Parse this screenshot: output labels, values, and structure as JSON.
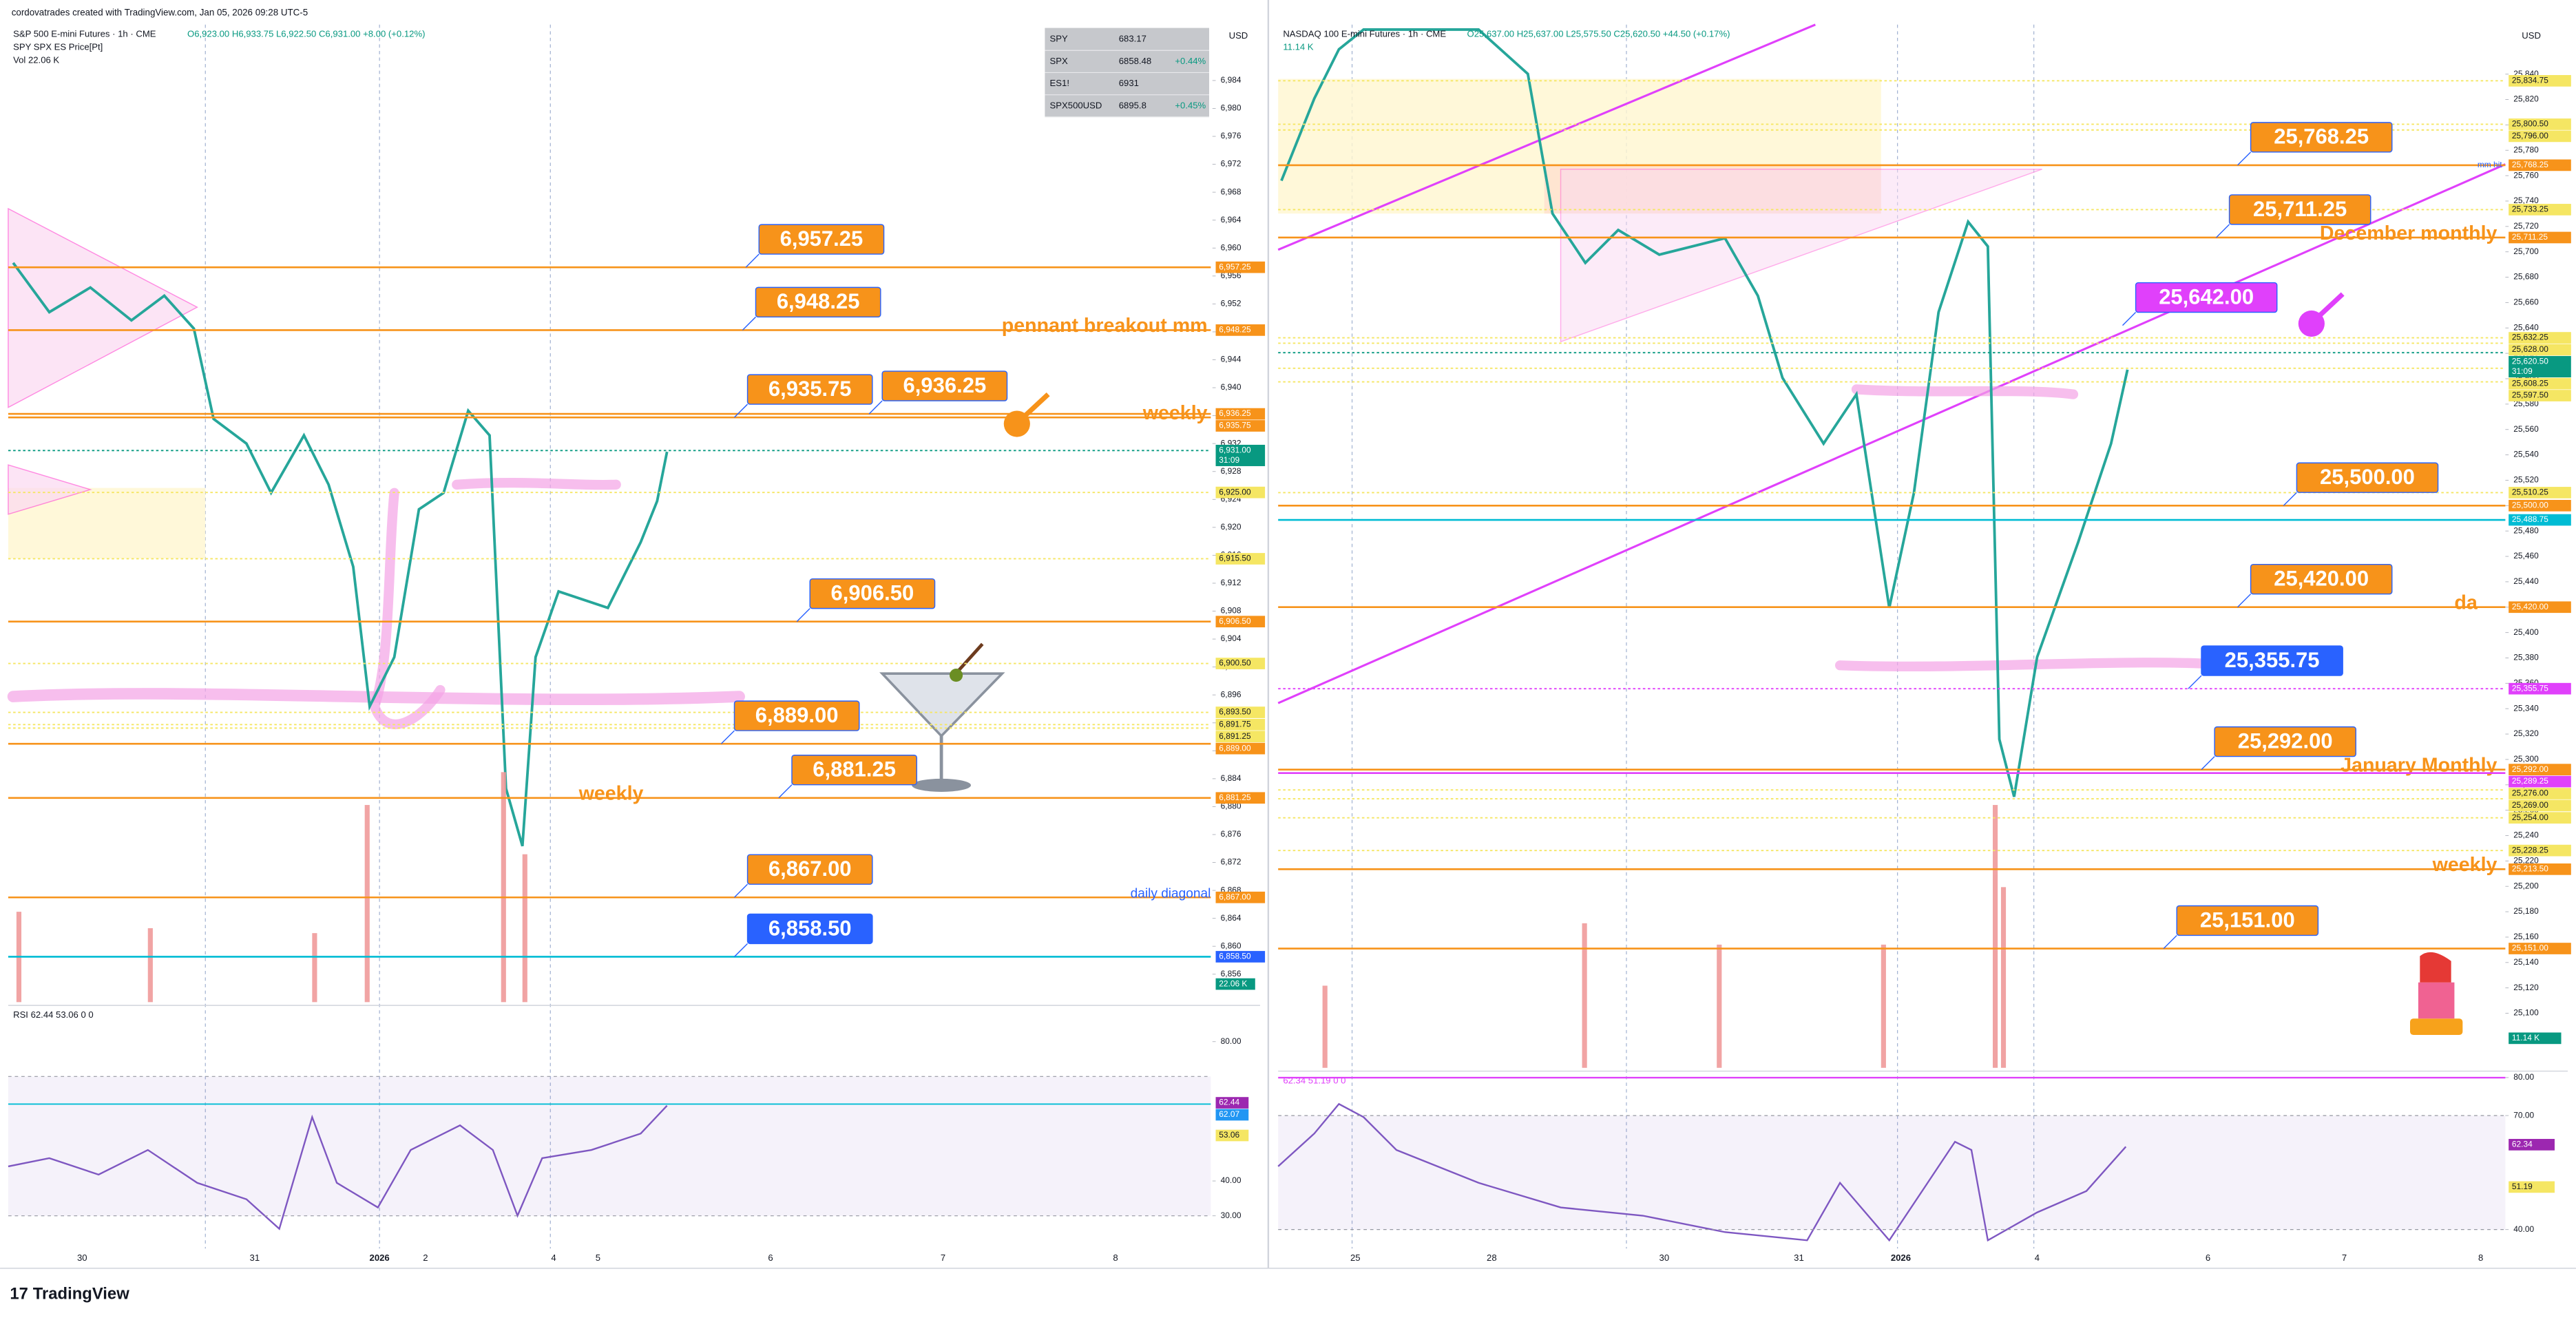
{
  "header": {
    "caption": "cordovatrades created with TradingView.com, Jan 05, 2026 09:28 UTC-5",
    "brand": "TradingView"
  },
  "watchlist": {
    "rows": [
      [
        "SPY",
        "683.17",
        ""
      ],
      [
        "SPX",
        "6858.48",
        "+0.44%"
      ],
      [
        "ES1!",
        "6931",
        ""
      ],
      [
        "SPX500USD",
        "6895.8",
        "+0.45%"
      ]
    ]
  },
  "panels": [
    {
      "title": "S&P 500 E-mini Futures · 1h · CME",
      "ohlc": "O6,923.00 H6,933.75 L6,922.50 C6,931.00 +8.00 (+0.12%)",
      "indicators": [
        "SPY SPX ES Price[Pt]",
        "Vol 22.06 K"
      ],
      "currency": "USD",
      "ylim": [
        6852,
        6992
      ],
      "yticks": [
        {
          "value": 6856,
          "label": "6,856"
        },
        {
          "value": 6860,
          "label": "6,860"
        },
        {
          "value": 6864,
          "label": "6,864"
        },
        {
          "value": 6868,
          "label": "6,868"
        },
        {
          "value": 6872,
          "label": "6,872"
        },
        {
          "value": 6876,
          "label": "6,876"
        },
        {
          "value": 6880,
          "label": "6,880"
        },
        {
          "value": 6884,
          "label": "6,884"
        },
        {
          "value": 6888,
          "label": "6,888"
        },
        {
          "value": 6892,
          "label": "6,892"
        },
        {
          "value": 6896,
          "label": "6,896"
        },
        {
          "value": 6900,
          "label": "6,900"
        },
        {
          "value": 6904,
          "label": "6,904"
        },
        {
          "value": 6908,
          "label": "6,908"
        },
        {
          "value": 6912,
          "label": "6,912"
        },
        {
          "value": 6916,
          "label": "6,916"
        },
        {
          "value": 6920,
          "label": "6,920"
        },
        {
          "value": 6924,
          "label": "6,924"
        },
        {
          "value": 6928,
          "label": "6,928"
        },
        {
          "value": 6932,
          "label": "6,932"
        },
        {
          "value": 6936,
          "label": "6,936"
        },
        {
          "value": 6940,
          "label": "6,940"
        },
        {
          "value": 6944,
          "label": "6,944"
        },
        {
          "value": 6948,
          "label": "6,948"
        },
        {
          "value": 6952,
          "label": "6,952"
        },
        {
          "value": 6956,
          "label": "6,956"
        },
        {
          "value": 6960,
          "label": "6,960"
        },
        {
          "value": 6964,
          "label": "6,964"
        },
        {
          "value": 6968,
          "label": "6,968"
        },
        {
          "value": 6972,
          "label": "6,972"
        },
        {
          "value": 6976,
          "label": "6,976"
        },
        {
          "value": 6980,
          "label": "6,980"
        },
        {
          "value": 6984,
          "label": "6,984"
        }
      ],
      "levels": [
        {
          "value": 6957.25,
          "label": "6,957.25",
          "color": "#f7931a",
          "line": "solid",
          "callout": true
        },
        {
          "value": 6948.25,
          "label": "6,948.25",
          "color": "#f7931a",
          "line": "solid",
          "callout": true,
          "note": "pennant breakout mm",
          "note_color": "#f7931a"
        },
        {
          "value": 6936.25,
          "label": "6,936.25",
          "color": "#f7931a",
          "line": "solid",
          "callout": true
        },
        {
          "value": 6935.75,
          "label": "6,935.75",
          "color": "#f7931a",
          "line": "solid",
          "callout": true,
          "note": "weekly",
          "note_color": "#f7931a"
        },
        {
          "value": 6931.0,
          "label": "6,931.00",
          "color": "#089981",
          "line": "dotted",
          "countdown": "31:09"
        },
        {
          "value": 6925.0,
          "label": "6,925.00",
          "color": "#f5e663",
          "line": "dotted"
        },
        {
          "value": 6915.5,
          "label": "6,915.50",
          "color": "#f5e663",
          "line": "dotted"
        },
        {
          "value": 6906.5,
          "label": "6,906.50",
          "color": "#f7931a",
          "line": "solid",
          "callout": true
        },
        {
          "value": 6900.5,
          "label": "6,900.50",
          "color": "#f5e663",
          "line": "dotted"
        },
        {
          "value": 6893.5,
          "label": "6,893.50",
          "color": "#f5e663",
          "line": "dotted"
        },
        {
          "value": 6891.75,
          "label": "6,891.75",
          "color": "#f5e663",
          "line": "dotted"
        },
        {
          "value": 6891.25,
          "label": "6,891.25",
          "color": "#f5e663",
          "line": "dotted"
        },
        {
          "value": 6889.0,
          "label": "6,889.00",
          "color": "#f7931a",
          "line": "solid",
          "callout": true
        },
        {
          "value": 6881.25,
          "label": "6,881.25",
          "color": "#f7931a",
          "line": "solid",
          "callout": true,
          "note": "weekly",
          "note_color": "#f7931a"
        },
        {
          "value": 6867.0,
          "label": "6,867.00",
          "color": "#f7931a",
          "line": "solid",
          "callout": true,
          "note": "daily diagonal",
          "note_color": "#2962ff"
        },
        {
          "value": 6858.5,
          "label": "6,858.50",
          "color": "#2962ff",
          "line_color": "#00bcd4",
          "line": "solid",
          "callout": true
        }
      ],
      "volume_label": "22.06 K",
      "volume_color": "#089981",
      "x_labels": [
        "30",
        "31",
        "2026",
        "2",
        "4",
        "5",
        "6",
        "7",
        "8"
      ],
      "rsi": {
        "legend": "RSI 62.44 53.06 0 0",
        "ylim": [
          20.6,
          90.4
        ],
        "ticks": [
          {
            "value": 80,
            "label": "80.00"
          },
          {
            "value": 40,
            "label": "40.00"
          },
          {
            "value": 30,
            "label": "30.00"
          }
        ],
        "band": [
          30,
          70
        ],
        "value_labels": [
          {
            "value": 62.44,
            "label": "62.44",
            "color": "#9c27b0"
          },
          {
            "value": 62.07,
            "label": "62.07",
            "color": "#2196f3"
          },
          {
            "value": 53.06,
            "label": "53.06",
            "color": "#f5e663"
          }
        ]
      }
    },
    {
      "title": "NASDAQ 100 E-mini Futures · 1h · CME",
      "ohlc": "O25,637.00 H25,637.00 L25,575.50 C25,620.50 +44.50 (+0.17%)",
      "indicators": [
        "11.14 K"
      ],
      "currency": "USD",
      "ylim": [
        25057,
        25879
      ],
      "yticks": [
        {
          "value": 25100,
          "label": "25,100"
        },
        {
          "value": 25120,
          "label": "25,120"
        },
        {
          "value": 25140,
          "label": "25,140"
        },
        {
          "value": 25160,
          "label": "25,160"
        },
        {
          "value": 25180,
          "label": "25,180"
        },
        {
          "value": 25200,
          "label": "25,200"
        },
        {
          "value": 25220,
          "label": "25,220"
        },
        {
          "value": 25240,
          "label": "25,240"
        },
        {
          "value": 25260,
          "label": "25,260"
        },
        {
          "value": 25280,
          "label": "25,280"
        },
        {
          "value": 25300,
          "label": "25,300"
        },
        {
          "value": 25320,
          "label": "25,320"
        },
        {
          "value": 25340,
          "label": "25,340"
        },
        {
          "value": 25360,
          "label": "25,360"
        },
        {
          "value": 25380,
          "label": "25,380"
        },
        {
          "value": 25400,
          "label": "25,400"
        },
        {
          "value": 25420,
          "label": "25,420"
        },
        {
          "value": 25440,
          "label": "25,440"
        },
        {
          "value": 25460,
          "label": "25,460"
        },
        {
          "value": 25480,
          "label": "25,480"
        },
        {
          "value": 25500,
          "label": "25,500"
        },
        {
          "value": 25520,
          "label": "25,520"
        },
        {
          "value": 25540,
          "label": "25,540"
        },
        {
          "value": 25560,
          "label": "25,560"
        },
        {
          "value": 25580,
          "label": "25,580"
        },
        {
          "value": 25600,
          "label": "25,600"
        },
        {
          "value": 25620,
          "label": "25,620"
        },
        {
          "value": 25640,
          "label": "25,640"
        },
        {
          "value": 25660,
          "label": "25,660"
        },
        {
          "value": 25680,
          "label": "25,680"
        },
        {
          "value": 25700,
          "label": "25,700"
        },
        {
          "value": 25720,
          "label": "25,720"
        },
        {
          "value": 25740,
          "label": "25,740"
        },
        {
          "value": 25760,
          "label": "25,760"
        },
        {
          "value": 25780,
          "label": "25,780"
        },
        {
          "value": 25800,
          "label": "25,800"
        },
        {
          "value": 25820,
          "label": "25,820"
        },
        {
          "value": 25840,
          "label": "25,840"
        }
      ],
      "levels": [
        {
          "value": 25834.75,
          "label": "25,834.75",
          "color": "#f5e663",
          "line": "dotted"
        },
        {
          "value": 25800.5,
          "label": "25,800.50",
          "color": "#f5e663",
          "line": "dotted"
        },
        {
          "value": 25796.0,
          "label": "25,796.00",
          "color": "#f5e663",
          "line": "dotted"
        },
        {
          "value": 25768.25,
          "label": "25,768.25",
          "color": "#f7931a",
          "line": "solid",
          "callout": true,
          "note": "mm hit",
          "note_color": "#2962ff"
        },
        {
          "value": 25733.25,
          "label": "25,733.25",
          "color": "#f5e663",
          "line": "dotted"
        },
        {
          "value": 25711.25,
          "label": "25,711.25",
          "color": "#f7931a",
          "line": "solid",
          "callout": true,
          "note": "December monthly",
          "note_color": "#f7931a"
        },
        {
          "value": 25642.0,
          "label": "25,642.00",
          "color": "#e040fb",
          "line": "none",
          "callout": true,
          "axis": false
        },
        {
          "value": 25632.25,
          "label": "25,632.25",
          "color": "#f5e663",
          "line": "dotted"
        },
        {
          "value": 25628.0,
          "label": "25,628.00",
          "color": "#f5e663",
          "line": "dotted"
        },
        {
          "value": 25620.5,
          "label": "25,620.50",
          "color": "#089981",
          "line": "dotted",
          "countdown": "31:09"
        },
        {
          "value": 25608.25,
          "label": "25,608.25",
          "color": "#f5e663",
          "line": "dotted"
        },
        {
          "value": 25597.5,
          "label": "25,597.50",
          "color": "#f5e663",
          "line": "dotted"
        },
        {
          "value": 25510.25,
          "label": "25,510.25",
          "color": "#f5e663",
          "line": "dotted"
        },
        {
          "value": 25500.0,
          "label": "25,500.00",
          "color": "#f7931a",
          "line": "solid",
          "callout": true
        },
        {
          "value": 25488.75,
          "label": "25,488.75",
          "color": "#00bcd4",
          "line": "solid"
        },
        {
          "value": 25420.0,
          "label": "25,420.00",
          "color": "#f7931a",
          "line": "solid",
          "callout": true,
          "note": "da",
          "note_color": "#f7931a"
        },
        {
          "value": 25355.75,
          "label": "25,355.75",
          "color": "#2962ff",
          "line_color": "#e040fb",
          "axis_color": "#e040fb",
          "line": "dotted",
          "callout": true
        },
        {
          "value": 25292.0,
          "label": "25,292.00",
          "color": "#f7931a",
          "line": "solid",
          "callout": true,
          "note": "January Monthly",
          "note_color": "#f7931a"
        },
        {
          "value": 25289.25,
          "label": "25,289.25",
          "color": "#e040fb",
          "line": "solid"
        },
        {
          "value": 25276.0,
          "label": "25,276.00",
          "color": "#f5e663",
          "line": "dotted"
        },
        {
          "value": 25269.0,
          "label": "25,269.00",
          "color": "#f5e663",
          "line": "dotted"
        },
        {
          "value": 25254.0,
          "label": "25,254.00",
          "color": "#f5e663",
          "line": "dotted"
        },
        {
          "value": 25228.25,
          "label": "25,228.25",
          "color": "#f5e663",
          "line": "dotted"
        },
        {
          "value": 25213.5,
          "label": "25,213.50",
          "color": "#f7931a",
          "line": "solid",
          "note": "weekly",
          "note_color": "#f7931a"
        },
        {
          "value": 25151.0,
          "label": "25,151.00",
          "color": "#f7931a",
          "line": "solid",
          "callout": true
        }
      ],
      "volume_label": "11.14 K",
      "volume_color": "#089981",
      "x_labels": [
        "25",
        "28",
        "30",
        "31",
        "2026",
        "4",
        "6",
        "7",
        "8"
      ],
      "rsi": {
        "legend": "62.34 51.19 0 0",
        "ylim": [
          35,
          81.7
        ],
        "ticks": [
          {
            "value": 80,
            "label": "80.00"
          },
          {
            "value": 70,
            "label": "70.00"
          },
          {
            "value": 40,
            "label": "40.00"
          }
        ],
        "band": [
          40,
          70
        ],
        "value_labels": [
          {
            "value": 62.34,
            "label": "62.34",
            "color": "#9c27b0"
          },
          {
            "value": 51.19,
            "label": "51.19",
            "color": "#f5e663"
          }
        ]
      }
    }
  ]
}
